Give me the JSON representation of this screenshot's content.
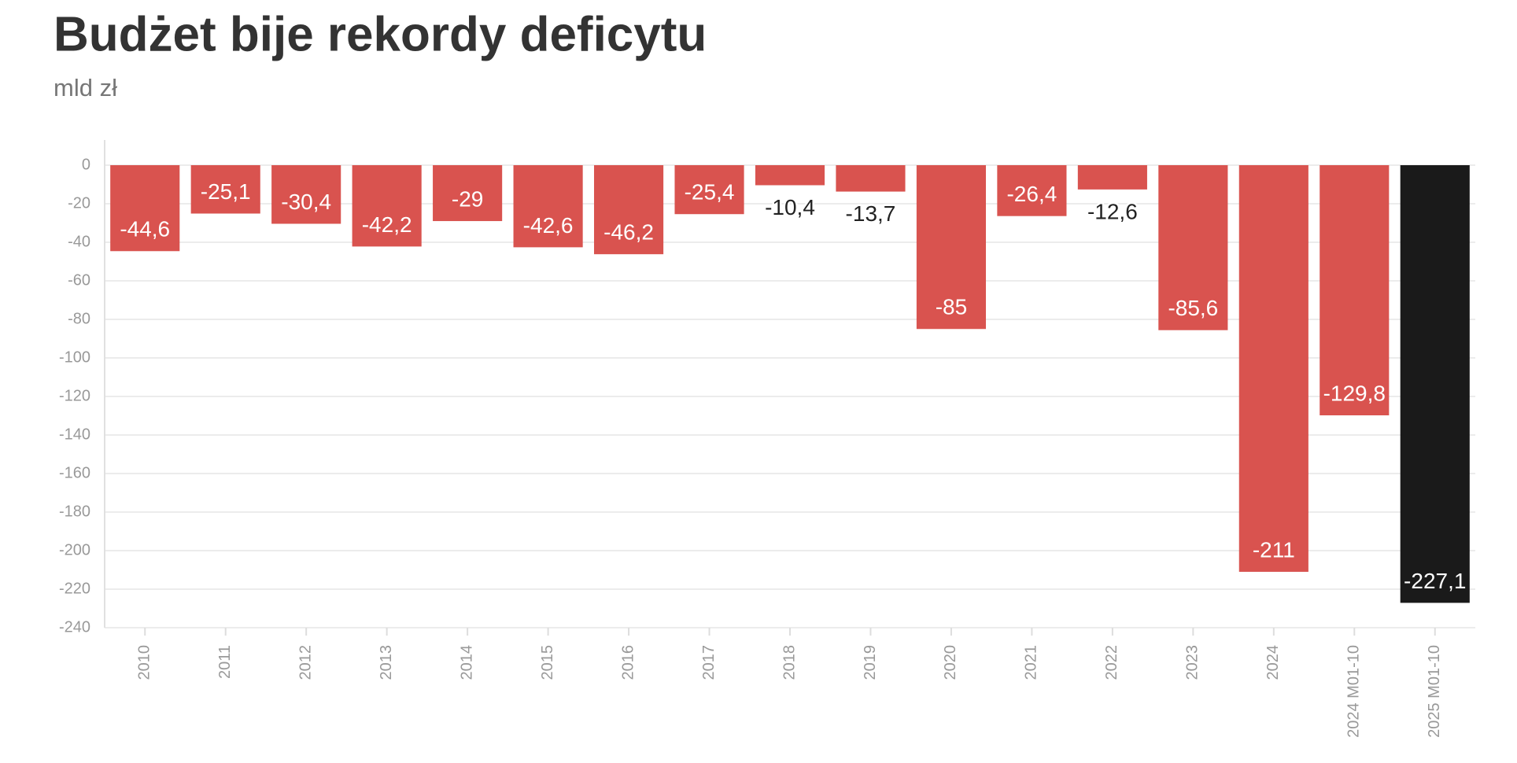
{
  "chart_data": {
    "type": "bar",
    "title": "Budżet bije rekordy deficytu",
    "subtitle": "mld zł",
    "categories": [
      "2010",
      "2011",
      "2012",
      "2013",
      "2014",
      "2015",
      "2016",
      "2017",
      "2018",
      "2019",
      "2020",
      "2021",
      "2022",
      "2023",
      "2024",
      "2024 M01-10",
      "2025 M01-10"
    ],
    "values": [
      -44.6,
      -25.1,
      -30.4,
      -42.2,
      -29,
      -42.6,
      -46.2,
      -25.4,
      -10.4,
      -13.7,
      -85,
      -26.4,
      -12.6,
      -85.6,
      -211,
      -129.8,
      -227.1
    ],
    "value_labels": [
      "-44,6",
      "-25,1",
      "-30,4",
      "-42,2",
      "-29",
      "-42,6",
      "-46,2",
      "-25,4",
      "-10,4",
      "-13,7",
      "-85",
      "-26,4",
      "-12,6",
      "-85,6",
      "-211",
      "-129,8",
      "-227,1"
    ],
    "colors": [
      "#d9534f",
      "#d9534f",
      "#d9534f",
      "#d9534f",
      "#d9534f",
      "#d9534f",
      "#d9534f",
      "#d9534f",
      "#d9534f",
      "#d9534f",
      "#d9534f",
      "#d9534f",
      "#d9534f",
      "#d9534f",
      "#d9534f",
      "#d9534f",
      "#1a1a1a"
    ],
    "ylim": [
      -240,
      0
    ],
    "yticks": [
      0,
      -20,
      -40,
      -60,
      -80,
      -100,
      -120,
      -140,
      -160,
      -180,
      -200,
      -220,
      -240
    ],
    "grid": true
  }
}
